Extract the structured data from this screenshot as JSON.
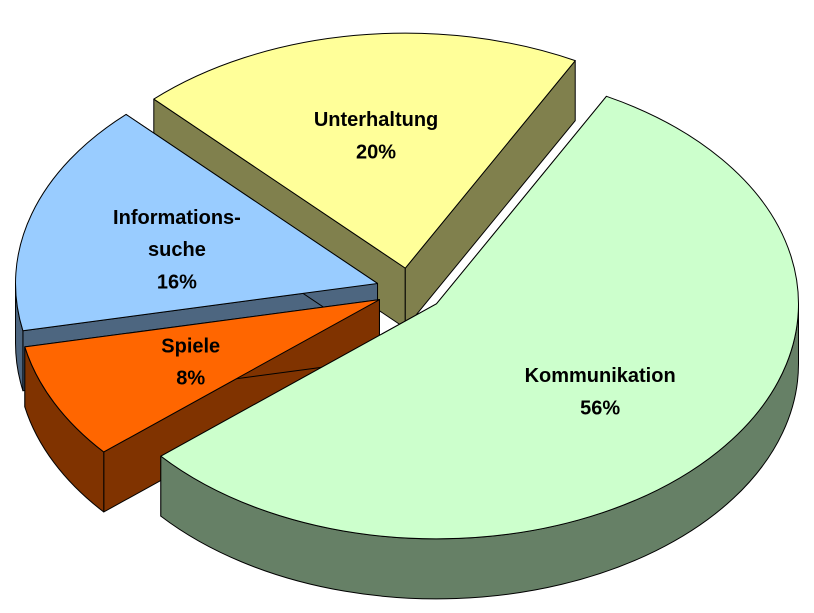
{
  "chart_data": {
    "type": "pie3d",
    "categories": [
      "Kommunikation",
      "Spiele",
      "Informations-\nsuche",
      "Unterhaltung"
    ],
    "values": [
      56,
      8,
      16,
      20
    ],
    "value_labels": [
      "56%",
      "8%",
      "16%",
      "20%"
    ],
    "colors": [
      "#ccffcc",
      "#ff6600",
      "#99ccff",
      "#ffff99"
    ],
    "exploded": true
  }
}
